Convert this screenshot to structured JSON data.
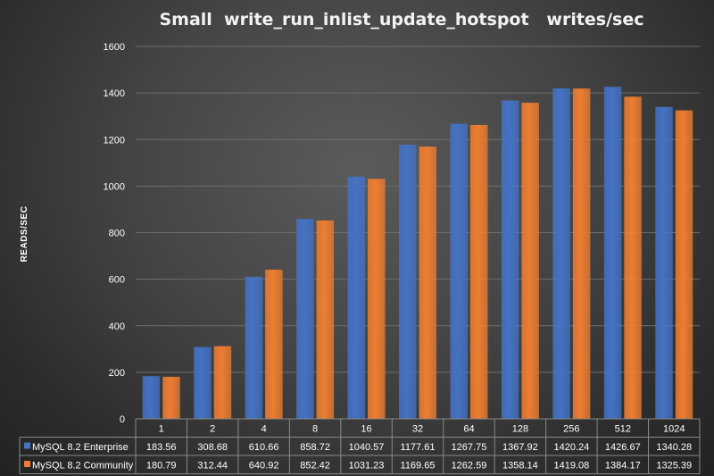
{
  "chart_data": {
    "type": "bar",
    "title": "Small  write_run_inlist_update_hotspot   writes/sec",
    "ylabel": "READS/SEC",
    "xlabel": "",
    "ylim": [
      0,
      1600
    ],
    "yticks": [
      0,
      200,
      400,
      600,
      800,
      1000,
      1200,
      1400,
      1600
    ],
    "grid": true,
    "legend": "data-table",
    "categories": [
      "1",
      "2",
      "4",
      "8",
      "16",
      "32",
      "64",
      "128",
      "256",
      "512",
      "1024"
    ],
    "series": [
      {
        "name": "MySQL 8.2 Enterprise",
        "color": "#4472C4",
        "values": [
          183.56,
          308.68,
          610.66,
          858.72,
          1040.57,
          1177.61,
          1267.75,
          1367.92,
          1420.24,
          1426.67,
          1340.28
        ],
        "labels": [
          "183.56",
          "308.68",
          "610.66",
          "858.72",
          "1040.57",
          "1177.61",
          "1267.75",
          "1367.92",
          "1420.24",
          "1426.67",
          "1340.28"
        ]
      },
      {
        "name": "MySQL 8.2 Community",
        "color": "#ED7D31",
        "values": [
          180.79,
          312.44,
          640.92,
          852.42,
          1031.23,
          1169.65,
          1262.59,
          1358.14,
          1419.08,
          1384.17,
          1325.39
        ],
        "labels": [
          "180.79",
          "312.44",
          "640.92",
          "852.42",
          "1031.23",
          "1169.65",
          "1262.59",
          "1358.14",
          "1419.08",
          "1384.17",
          "1325.39"
        ]
      }
    ]
  }
}
